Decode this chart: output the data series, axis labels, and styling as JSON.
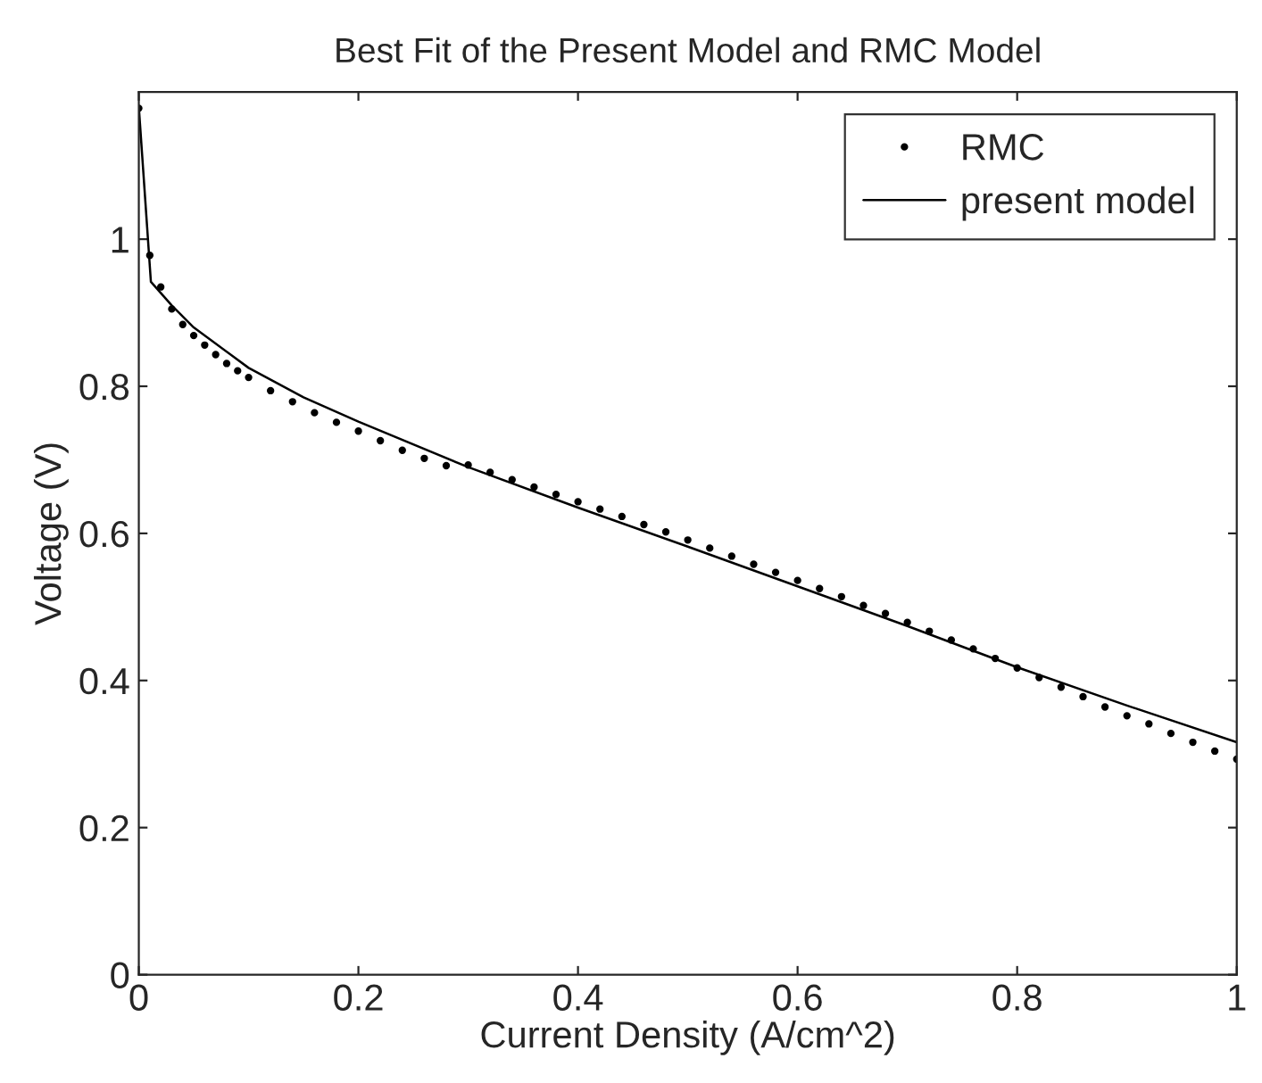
{
  "chart_data": {
    "type": "line",
    "title": "Best Fit of the Present Model and RMC Model",
    "xlabel": "Current Density (A/cm^2)",
    "ylabel": "Voltage (V)",
    "xlim": [
      0,
      1
    ],
    "ylim": [
      0,
      1.2
    ],
    "xticks": [
      0,
      0.2,
      0.4,
      0.6,
      0.8,
      1
    ],
    "yticks": [
      0,
      0.2,
      0.4,
      0.6,
      0.8,
      1
    ],
    "grid": false,
    "legend": "top right",
    "series": [
      {
        "name": "RMC",
        "type": "scatter",
        "color": "#000000",
        "marker": "circle",
        "x": [
          0,
          0.01,
          0.02,
          0.03,
          0.04,
          0.05,
          0.06,
          0.07,
          0.08,
          0.09,
          0.1,
          0.12,
          0.14,
          0.16,
          0.18,
          0.2,
          0.22,
          0.24,
          0.26,
          0.28,
          0.3,
          0.32,
          0.34,
          0.36,
          0.38,
          0.4,
          0.42,
          0.44,
          0.46,
          0.48,
          0.5,
          0.52,
          0.54,
          0.56,
          0.58,
          0.6,
          0.62,
          0.64,
          0.66,
          0.68,
          0.7,
          0.72,
          0.74,
          0.76,
          0.78,
          0.8,
          0.82,
          0.84,
          0.86,
          0.88,
          0.9,
          0.92,
          0.94,
          0.96,
          0.98,
          1.0
        ],
        "values": [
          1.178,
          0.978,
          0.935,
          0.905,
          0.884,
          0.869,
          0.856,
          0.843,
          0.831,
          0.821,
          0.812,
          0.794,
          0.779,
          0.764,
          0.751,
          0.739,
          0.726,
          0.713,
          0.702,
          0.692,
          0.693,
          0.683,
          0.673,
          0.663,
          0.653,
          0.643,
          0.633,
          0.623,
          0.612,
          0.602,
          0.591,
          0.58,
          0.569,
          0.558,
          0.547,
          0.536,
          0.525,
          0.514,
          0.502,
          0.491,
          0.479,
          0.467,
          0.455,
          0.443,
          0.43,
          0.417,
          0.404,
          0.391,
          0.378,
          0.364,
          0.352,
          0.341,
          0.328,
          0.316,
          0.304,
          0.293
        ]
      },
      {
        "name": "present model",
        "color": "#000000",
        "line_style": "solid",
        "x": [
          0,
          0.011,
          0.03,
          0.05,
          0.1,
          0.15,
          0.2,
          0.3,
          0.4,
          0.5,
          0.6,
          0.7,
          0.8,
          0.9,
          1.0
        ],
        "values": [
          1.18,
          0.942,
          0.91,
          0.88,
          0.825,
          0.785,
          0.752,
          0.69,
          0.635,
          0.582,
          0.528,
          0.474,
          0.418,
          0.366,
          0.316
        ]
      }
    ]
  }
}
